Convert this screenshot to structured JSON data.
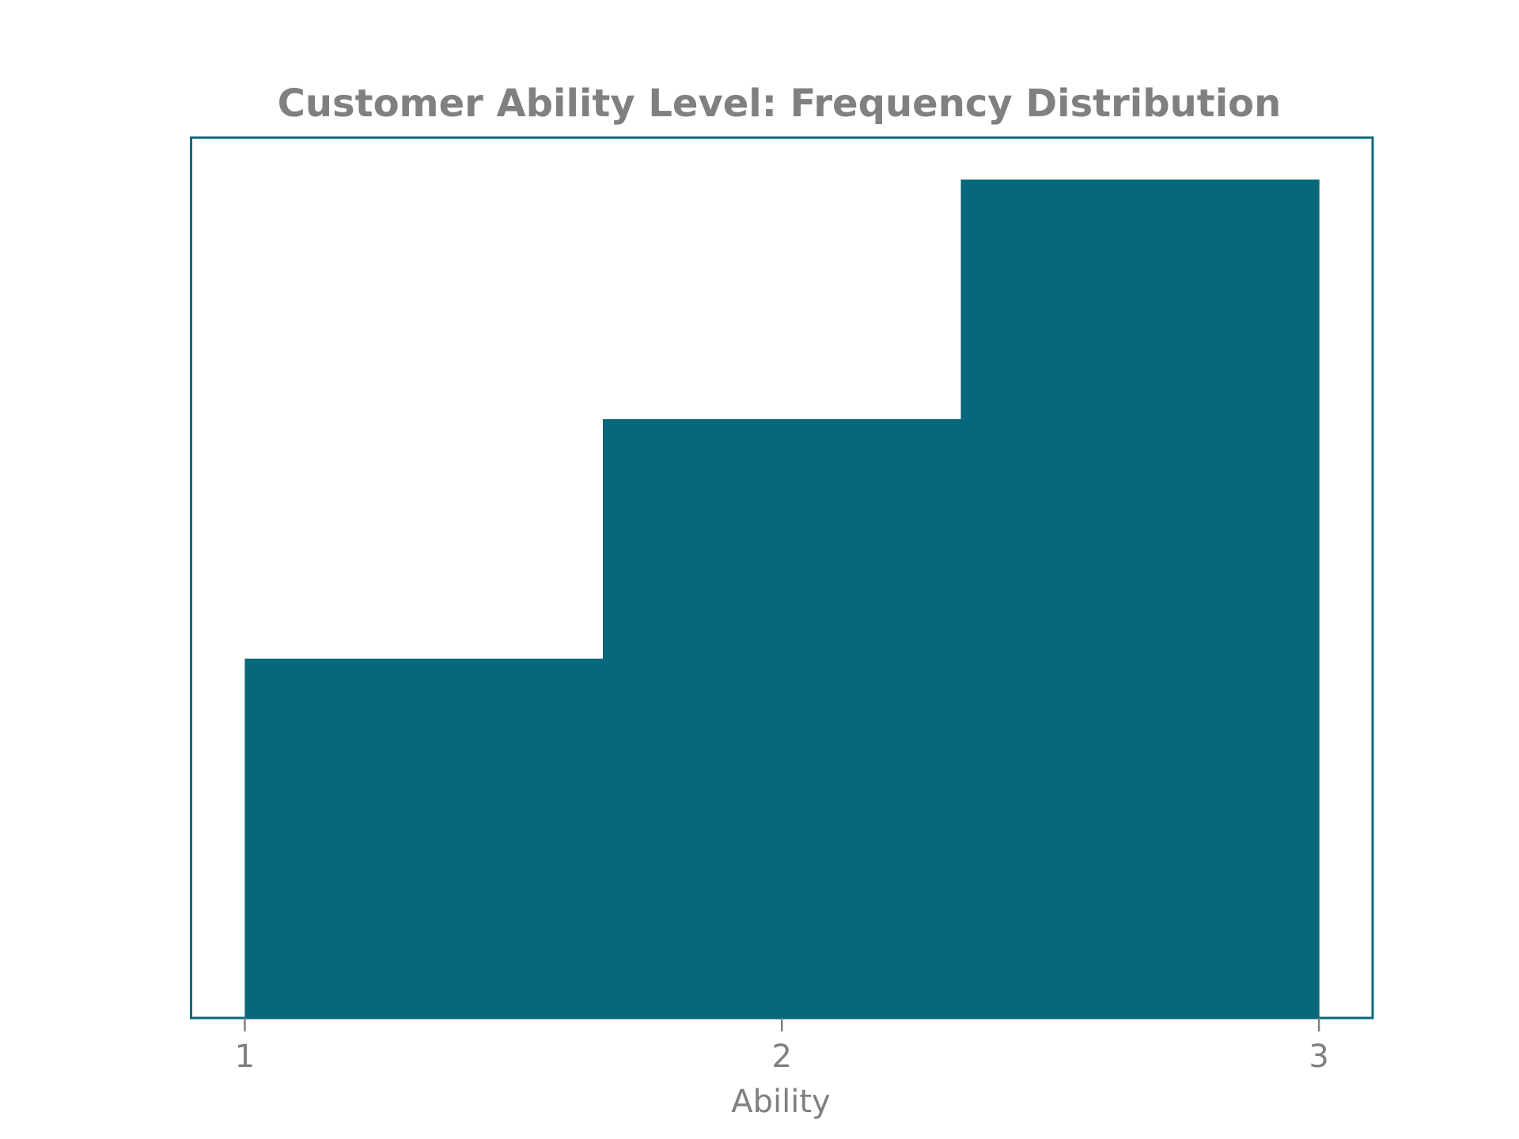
{
  "chart_data": {
    "type": "bar",
    "title": "Customer Ability Level: Frequency Distribution",
    "xlabel": "Ability",
    "ylabel": "",
    "x_ticks": [
      "1",
      "2",
      "3"
    ],
    "xlim": [
      0.9,
      3.1
    ],
    "bins": [
      {
        "start": 1.0,
        "end": 1.6667,
        "value": 3
      },
      {
        "start": 1.6667,
        "end": 2.3333,
        "value": 5
      },
      {
        "start": 2.3333,
        "end": 3.0,
        "value": 7
      }
    ],
    "ylim": [
      0,
      7.35
    ],
    "grid": false,
    "bar_color": "#08677a",
    "frame_color": "#08677a",
    "text_color": "#808080"
  }
}
